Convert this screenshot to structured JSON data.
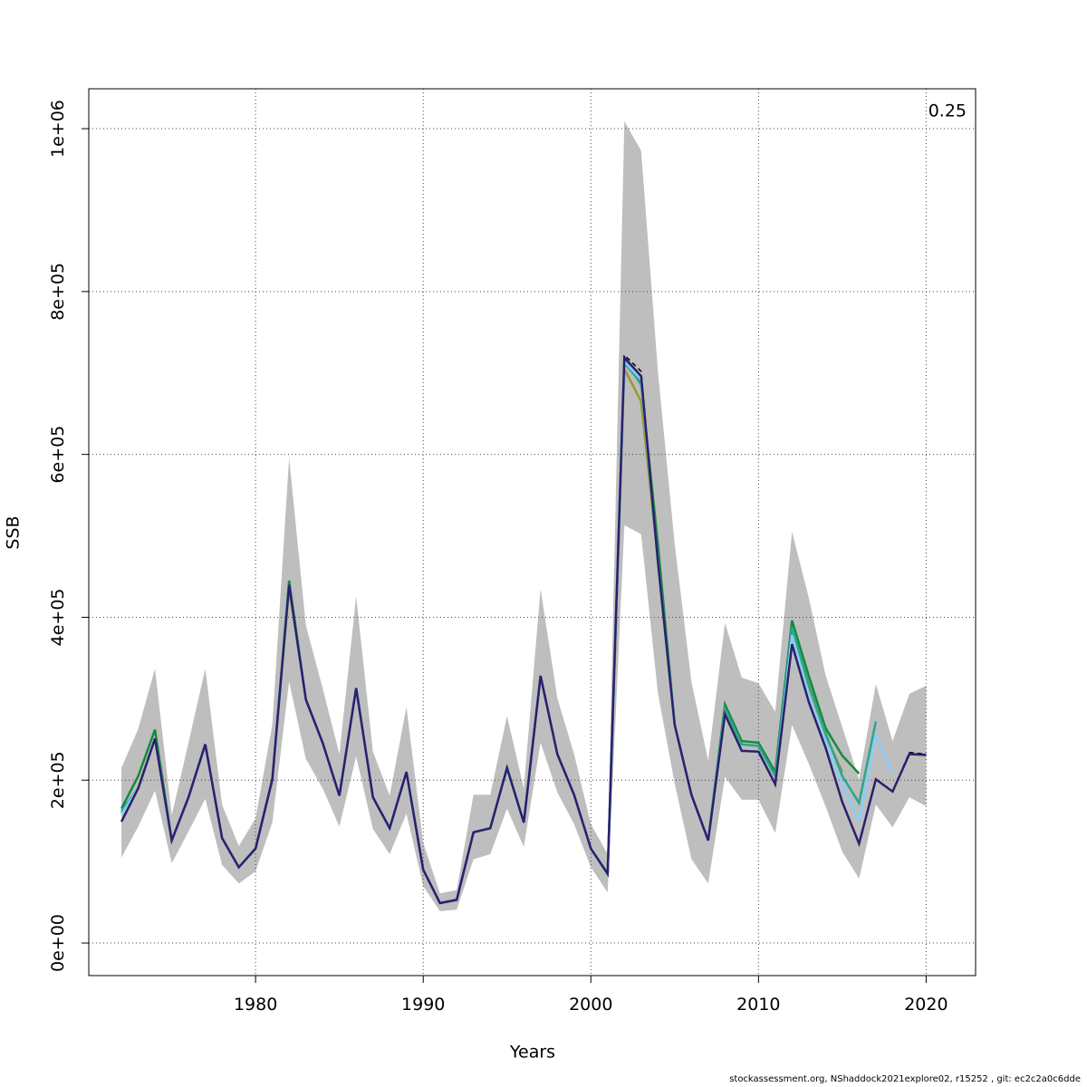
{
  "chart_data": {
    "type": "line",
    "xlabel": "Years",
    "ylabel": "SSB",
    "annotation": "0.25",
    "footer": "stockassessment.org, NShaddock2021explore02, r15252 , git: ec2c2a0c6dde",
    "xlim": [
      1970.05,
      2022.95
    ],
    "ylim": [
      -40000,
      1049000
    ],
    "xticks": [
      1980,
      1990,
      2000,
      2010,
      2020
    ],
    "yticks": [
      {
        "value": 0,
        "label": "0e+00"
      },
      {
        "value": 200000,
        "label": "2e+05"
      },
      {
        "value": 400000,
        "label": "4e+05"
      },
      {
        "value": 600000,
        "label": "6e+05"
      },
      {
        "value": 800000,
        "label": "8e+05"
      },
      {
        "value": 1000000,
        "label": "1e+06"
      }
    ],
    "grid": true,
    "x": [
      1972,
      1973,
      1974,
      1975,
      1976,
      1977,
      1978,
      1979,
      1980,
      1981,
      1982,
      1983,
      1984,
      1985,
      1986,
      1987,
      1988,
      1989,
      1990,
      1991,
      1992,
      1993,
      1994,
      1995,
      1996,
      1997,
      1998,
      1999,
      2000,
      2001,
      2002,
      2003,
      2004,
      2005,
      2006,
      2007,
      2008,
      2009,
      2010,
      2011,
      2012,
      2013,
      2014,
      2015,
      2016,
      2017,
      2018,
      2019,
      2020
    ],
    "band": {
      "color": "#bebebe",
      "upper": [
        215000,
        263000,
        337000,
        157000,
        246000,
        337000,
        170000,
        119000,
        153000,
        268000,
        596000,
        390000,
        313000,
        232000,
        426000,
        235000,
        181000,
        290000,
        123000,
        61000,
        65000,
        182000,
        182000,
        279000,
        190000,
        435000,
        301000,
        232000,
        146000,
        109000,
        1009000,
        973000,
        702000,
        490000,
        321000,
        224000,
        393000,
        326000,
        319000,
        284000,
        505000,
        424000,
        329000,
        265000,
        201000,
        318000,
        248000,
        306000,
        316000
      ],
      "lower": [
        105000,
        143000,
        187000,
        98000,
        137000,
        177000,
        96000,
        73000,
        88000,
        148000,
        321000,
        226000,
        190000,
        143000,
        229000,
        140000,
        109000,
        159000,
        70000,
        39000,
        41000,
        103000,
        109000,
        165000,
        118000,
        246000,
        185000,
        146000,
        93000,
        62000,
        513000,
        502000,
        307000,
        196000,
        103000,
        73000,
        204000,
        176000,
        176000,
        135000,
        268000,
        220000,
        168000,
        112000,
        79000,
        170000,
        142000,
        179000,
        168000
      ]
    },
    "series": [
      {
        "color": "#9a9a2a",
        "values": [
          160000,
          190000,
          251000,
          126000,
          179000,
          244000,
          129000,
          93000,
          116000,
          201000,
          435000,
          299000,
          246000,
          181000,
          313000,
          179000,
          141000,
          210000,
          90000,
          49000,
          53000,
          136000,
          141000,
          215000,
          148000,
          328000,
          232000,
          182000,
          116000,
          85000,
          705000,
          665000,
          470000,
          268000,
          182000,
          126000,
          290000,
          236000,
          235000,
          195000,
          380000,
          315000,
          255000,
          210000,
          null,
          null,
          null,
          null,
          null
        ]
      },
      {
        "color": "#138a3c",
        "values": [
          165000,
          205000,
          262000,
          126000,
          179000,
          244000,
          129000,
          93000,
          116000,
          201000,
          445000,
          299000,
          246000,
          181000,
          313000,
          179000,
          141000,
          210000,
          90000,
          49000,
          53000,
          136000,
          141000,
          215000,
          148000,
          328000,
          232000,
          182000,
          116000,
          85000,
          717000,
          686000,
          490000,
          268000,
          182000,
          126000,
          293000,
          248000,
          246000,
          210000,
          396000,
          328000,
          264000,
          230000,
          208000,
          null,
          null,
          null,
          null
        ]
      },
      {
        "color": "#2ca58d",
        "values": [
          162000,
          190000,
          251000,
          126000,
          179000,
          244000,
          129000,
          93000,
          116000,
          201000,
          440000,
          299000,
          246000,
          181000,
          313000,
          179000,
          141000,
          210000,
          90000,
          49000,
          53000,
          136000,
          141000,
          215000,
          148000,
          328000,
          232000,
          182000,
          116000,
          85000,
          712000,
          688000,
          468000,
          268000,
          182000,
          126000,
          288000,
          244000,
          242000,
          205000,
          388000,
          318000,
          258000,
          205000,
          172000,
          272000,
          null,
          null,
          null
        ]
      },
      {
        "color": "#87cefa",
        "values": [
          158000,
          190000,
          251000,
          126000,
          179000,
          244000,
          129000,
          93000,
          116000,
          201000,
          440000,
          299000,
          246000,
          181000,
          313000,
          179000,
          141000,
          210000,
          90000,
          49000,
          53000,
          136000,
          141000,
          215000,
          148000,
          328000,
          232000,
          182000,
          116000,
          85000,
          714000,
          692000,
          468000,
          268000,
          182000,
          126000,
          281000,
          236000,
          235000,
          195000,
          378000,
          305000,
          248000,
          195000,
          150000,
          255000,
          208000,
          null,
          null
        ]
      },
      {
        "color": "#000000",
        "dashed": true,
        "values": [
          149000,
          190000,
          251000,
          126000,
          179000,
          244000,
          129000,
          93000,
          116000,
          201000,
          440000,
          299000,
          246000,
          181000,
          313000,
          179000,
          141000,
          210000,
          90000,
          49000,
          53000,
          136000,
          141000,
          215000,
          148000,
          328000,
          232000,
          182000,
          116000,
          85000,
          722000,
          702000,
          468000,
          268000,
          182000,
          126000,
          281000,
          236000,
          235000,
          195000,
          367000,
          296000,
          240000,
          173000,
          122000,
          201000,
          186000,
          234000,
          232000
        ]
      },
      {
        "color": "#2b1f6e",
        "values": [
          149000,
          190000,
          251000,
          126000,
          179000,
          244000,
          129000,
          93000,
          116000,
          201000,
          440000,
          299000,
          246000,
          181000,
          313000,
          179000,
          141000,
          210000,
          90000,
          49000,
          53000,
          136000,
          141000,
          215000,
          148000,
          328000,
          232000,
          182000,
          116000,
          85000,
          719000,
          696000,
          468000,
          268000,
          182000,
          126000,
          281000,
          236000,
          235000,
          195000,
          367000,
          296000,
          240000,
          173000,
          122000,
          201000,
          186000,
          232000,
          231000
        ]
      }
    ]
  }
}
